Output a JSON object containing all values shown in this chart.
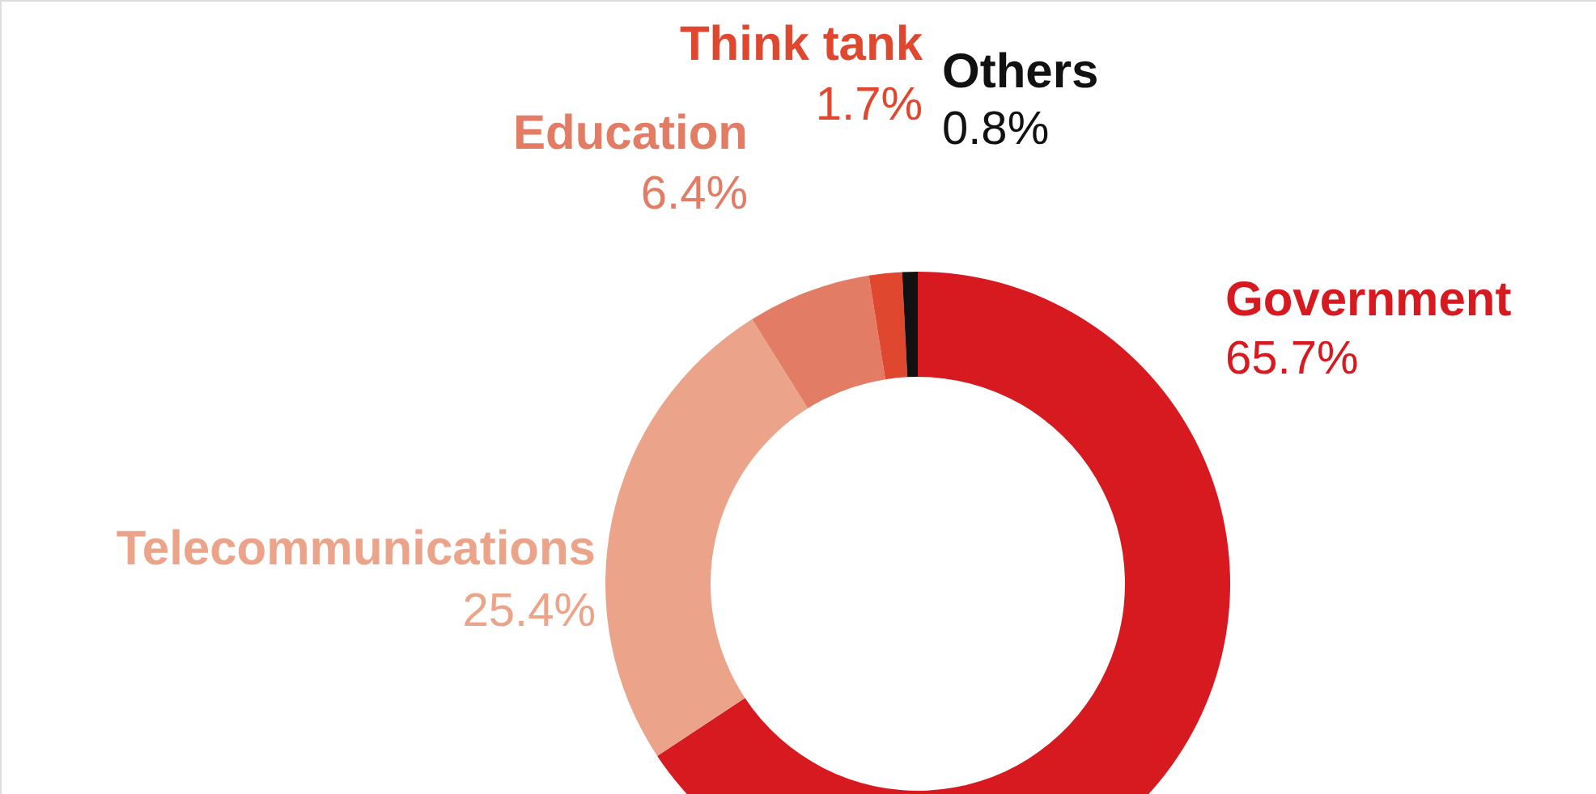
{
  "chart_data": {
    "type": "donut",
    "categories": [
      "Government",
      "Telecommunications",
      "Education",
      "Think tank",
      "Others"
    ],
    "values": [
      65.7,
      25.4,
      6.4,
      1.7,
      0.8
    ],
    "colors": [
      "#d71920",
      "#eba48a",
      "#e27c64",
      "#e0472f",
      "#111111"
    ],
    "value_labels": [
      "65.7%",
      "25.4%",
      "6.4%",
      "1.7%",
      "0.8%"
    ]
  }
}
